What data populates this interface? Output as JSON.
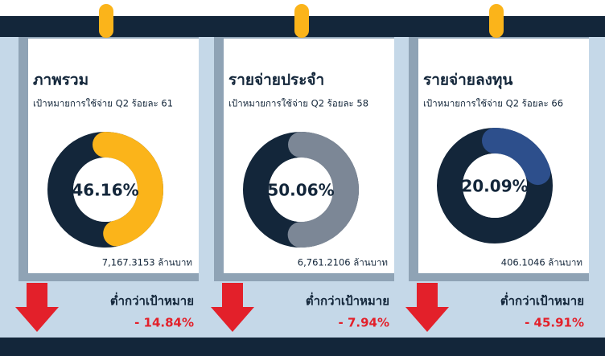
{
  "chart_data": [
    {
      "type": "donut",
      "title": "ภาพรวม",
      "subtitle": "เป้าหมายการใช้จ่าย Q2 ร้อยละ 61",
      "values": [
        46.16
      ],
      "value_labels": [
        "46.16%"
      ],
      "color": "#fbb41a",
      "track_color": "#13263a",
      "amount": "7,167.3153 ล้านบาท",
      "status": "ต่ำกว่าเป้าหมาย",
      "difference": "- 14.84%"
    },
    {
      "type": "donut",
      "title": "รายจ่ายประจำ",
      "subtitle": "เป้าหมายการใช้จ่าย Q2 ร้อยละ 58",
      "values": [
        50.06
      ],
      "value_labels": [
        "50.06%"
      ],
      "color": "#7c8796",
      "track_color": "#13263a",
      "amount": "6,761.2106 ล้านบาท",
      "status": "ต่ำกว่าเป้าหมาย",
      "difference": "- 7.94%"
    },
    {
      "type": "donut",
      "title": "รายจ่ายลงทุน",
      "subtitle": "เป้าหมายการใช้จ่าย Q2 ร้อยละ 66",
      "values": [
        20.09
      ],
      "value_labels": [
        "20.09%"
      ],
      "color": "#2d4f8c",
      "track_color": "#13263a",
      "amount": "406.1046 ล้านบาท",
      "status": "ต่ำกว่าเป้าหมาย",
      "difference": "- 45.91%"
    }
  ]
}
